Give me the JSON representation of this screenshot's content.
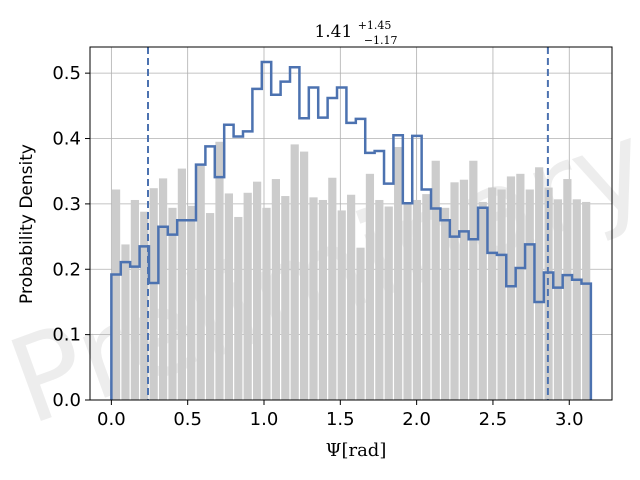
{
  "chart_data": {
    "type": "histogram",
    "title": {
      "value": "1.41",
      "upper": "+1.45",
      "lower": "−1.17"
    },
    "xlabel": {
      "symbol": "Ψ",
      "unit": "[rad]"
    },
    "ylabel": "Probability Density",
    "xlim": [
      -0.14,
      3.28
    ],
    "ylim": [
      0.0,
      0.54
    ],
    "x_ticks": [
      "0.0",
      "0.5",
      "1.0",
      "1.5",
      "2.0",
      "2.5",
      "3.0"
    ],
    "y_ticks": [
      "0.0",
      "0.1",
      "0.2",
      "0.3",
      "0.4",
      "0.5"
    ],
    "grid": true,
    "watermark": "Preliminary",
    "bin_edges_range": [
      0.0,
      3.1416
    ],
    "prior_bar_color": "#cccccc",
    "posterior_color": "#4c72b0",
    "prior_bars": [
      0.322,
      0.238,
      0.306,
      0.288,
      0.324,
      0.339,
      0.294,
      0.354,
      0.297,
      0.358,
      0.286,
      0.395,
      0.316,
      0.28,
      0.317,
      0.334,
      0.294,
      0.338,
      0.312,
      0.391,
      0.38,
      0.31,
      0.306,
      0.34,
      0.29,
      0.314,
      0.233,
      0.346,
      0.306,
      0.296,
      0.387,
      0.3,
      0.306,
      0.315,
      0.366,
      0.294,
      0.333,
      0.337,
      0.366,
      0.303,
      0.325,
      0.322,
      0.342,
      0.346,
      0.322,
      0.356,
      0.325,
      0.307,
      0.338,
      0.307,
      0.303
    ],
    "posterior_bins": [
      0.192,
      0.211,
      0.204,
      0.235,
      0.179,
      0.265,
      0.253,
      0.275,
      0.275,
      0.36,
      0.388,
      0.341,
      0.421,
      0.403,
      0.411,
      0.476,
      0.517,
      0.467,
      0.487,
      0.509,
      0.431,
      0.478,
      0.432,
      0.462,
      0.478,
      0.424,
      0.43,
      0.378,
      0.381,
      0.331,
      0.405,
      0.301,
      0.404,
      0.322,
      0.293,
      0.275,
      0.25,
      0.258,
      0.246,
      0.294,
      0.225,
      0.222,
      0.174,
      0.202,
      0.238,
      0.15,
      0.195,
      0.172,
      0.191,
      0.184,
      0.178
    ],
    "credible_interval": [
      0.24,
      2.86
    ],
    "interval_line_style": "dashed"
  }
}
